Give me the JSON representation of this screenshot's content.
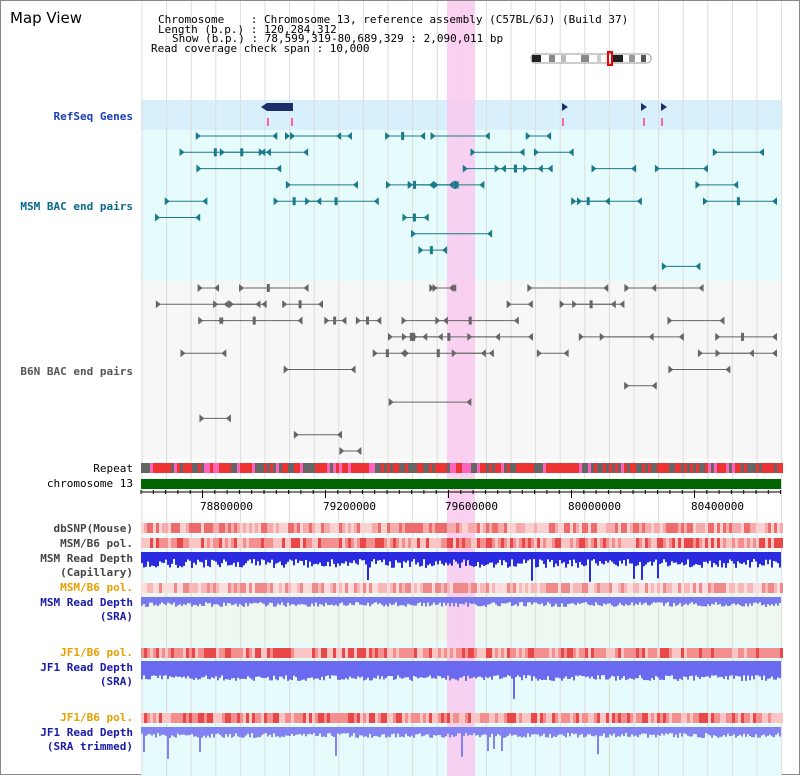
{
  "page_title": "Map View",
  "header": {
    "line1": "Chromosome    : Chromosome 13, reference assembly (C57BL/6J) (Build 37)",
    "line2": "Length (b.p.) : 120,284,312",
    "line3": "Show (b.p.) : 78,599,319-80,689,329 : 2,090,011 bp",
    "line4": "Read coverage check span : 10,000"
  },
  "tracks": {
    "refseq": "RefSeq Genes",
    "msm_bac": "MSM BAC end pairs",
    "b6n_bac": "B6N BAC end pairs",
    "repeat": "Repeat",
    "chromosome": "chromosome 13",
    "dbsnp": "dbSNP(Mouse)",
    "msm_b6_pol_1": "MSM/B6 pol.",
    "msm_depth_cap_1": "MSM Read Depth",
    "msm_depth_cap_2": "(Capillary)",
    "msm_b6_pol_2": "MSM/B6 pol.",
    "msm_depth_sra_1": "MSM Read Depth",
    "msm_depth_sra_2": "(SRA)",
    "jf1_b6_pol_1": "JF1/B6 pol.",
    "jf1_depth_sra_1": "JF1 Read Depth",
    "jf1_depth_sra_2": "(SRA)",
    "jf1_b6_pol_2": "JF1/B6 pol.",
    "jf1_depth_trim_1": "JF1 Read Depth",
    "jf1_depth_trim_2": "(SRA trimmed)"
  },
  "axis": {
    "ticks": [
      "78800000",
      "79200000",
      "79600000",
      "80000000",
      "80400000"
    ]
  },
  "colors": {
    "refseq_label": "#1a3fb4",
    "msm_label": "#0a6a8a",
    "b6n_label": "#555555",
    "orange_label": "#e8a000",
    "blue_label": "#1a1aa8",
    "highlight": "#f9c9ee",
    "chromosome_bar": "#006400"
  }
}
